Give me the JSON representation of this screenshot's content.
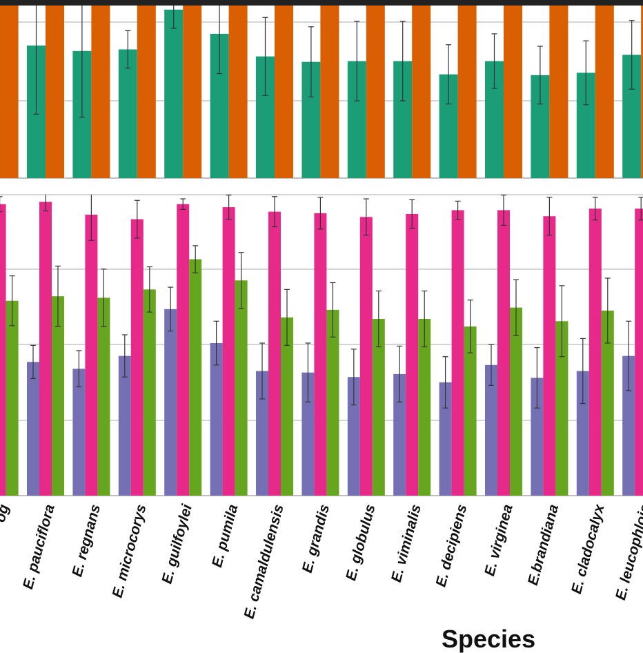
{
  "chart_data": [
    {
      "type": "bar",
      "panel": "top",
      "grid": true,
      "ylim": [
        0,
        2.2
      ],
      "categories": [
        "og",
        "E. pauciflora",
        "E. regnans",
        "E. microcorys",
        "E. guilfoylei",
        "E. pumila",
        "E. camaldulensis",
        "E. grandis",
        "E. globulus",
        "E. viminalis",
        "E. decipiens",
        "E. virginea",
        "E.brandiana",
        "E. cladocalyx",
        "E. leucophloia"
      ],
      "series": [
        {
          "color": "#1b9e77",
          "values": [
            null,
            1.7,
            1.63,
            1.65,
            2.16,
            1.85,
            1.56,
            1.49,
            1.5,
            1.5,
            1.33,
            1.5,
            1.32,
            1.35,
            1.58
          ],
          "err": [
            null,
            0.88,
            0.85,
            0.24,
            0.24,
            0.51,
            0.5,
            0.45,
            0.51,
            0.51,
            0.38,
            0.35,
            0.37,
            0.41,
            0.44
          ]
        },
        {
          "color": "#d95f02",
          "values": [
            2.5,
            2.5,
            2.5,
            2.5,
            2.5,
            2.5,
            2.5,
            2.5,
            2.5,
            2.5,
            2.5,
            2.5,
            2.5,
            2.5,
            2.5
          ],
          "err": []
        }
      ]
    },
    {
      "type": "bar",
      "panel": "bottom",
      "grid": true,
      "ylim": [
        0,
        4.0
      ],
      "xlabel": "Species",
      "categories": [
        "og",
        "E. pauciflora",
        "E. regnans",
        "E. microcorys",
        "E. guilfoylei",
        "E. pumila",
        "E. camaldulensis",
        "E. grandis",
        "E. globulus",
        "E. viminalis",
        "E. decipiens",
        "E. virginea",
        "E.brandiana",
        "E. cladocalyx",
        "E. leucophloia"
      ],
      "series": [
        {
          "color": "#7570b3",
          "values": [
            null,
            1.77,
            1.68,
            1.85,
            2.47,
            2.02,
            1.65,
            1.63,
            1.57,
            1.61,
            1.5,
            1.73,
            1.56,
            1.65,
            1.85
          ],
          "err": [
            null,
            0.22,
            0.24,
            0.28,
            0.29,
            0.29,
            0.37,
            0.39,
            0.37,
            0.37,
            0.34,
            0.27,
            0.4,
            0.43,
            0.46
          ]
        },
        {
          "color": "#e7298a",
          "values": [
            3.86,
            3.89,
            3.72,
            3.66,
            3.86,
            3.82,
            3.76,
            3.74,
            3.69,
            3.73,
            3.78,
            3.78,
            3.7,
            3.8,
            3.8
          ],
          "err": [
            0.1,
            0.12,
            0.34,
            0.25,
            0.07,
            0.16,
            0.2,
            0.21,
            0.24,
            0.19,
            0.12,
            0.2,
            0.25,
            0.15,
            0.15
          ]
        },
        {
          "color": "#66a61e",
          "values": [
            2.58,
            2.64,
            2.62,
            2.73,
            3.13,
            2.85,
            2.36,
            2.46,
            2.34,
            2.34,
            2.24,
            2.49,
            2.31,
            2.45,
            null
          ],
          "err": [
            0.33,
            0.4,
            0.38,
            0.3,
            0.18,
            0.37,
            0.37,
            0.36,
            0.37,
            0.37,
            0.35,
            0.37,
            0.47,
            0.43,
            null
          ]
        }
      ]
    }
  ]
}
